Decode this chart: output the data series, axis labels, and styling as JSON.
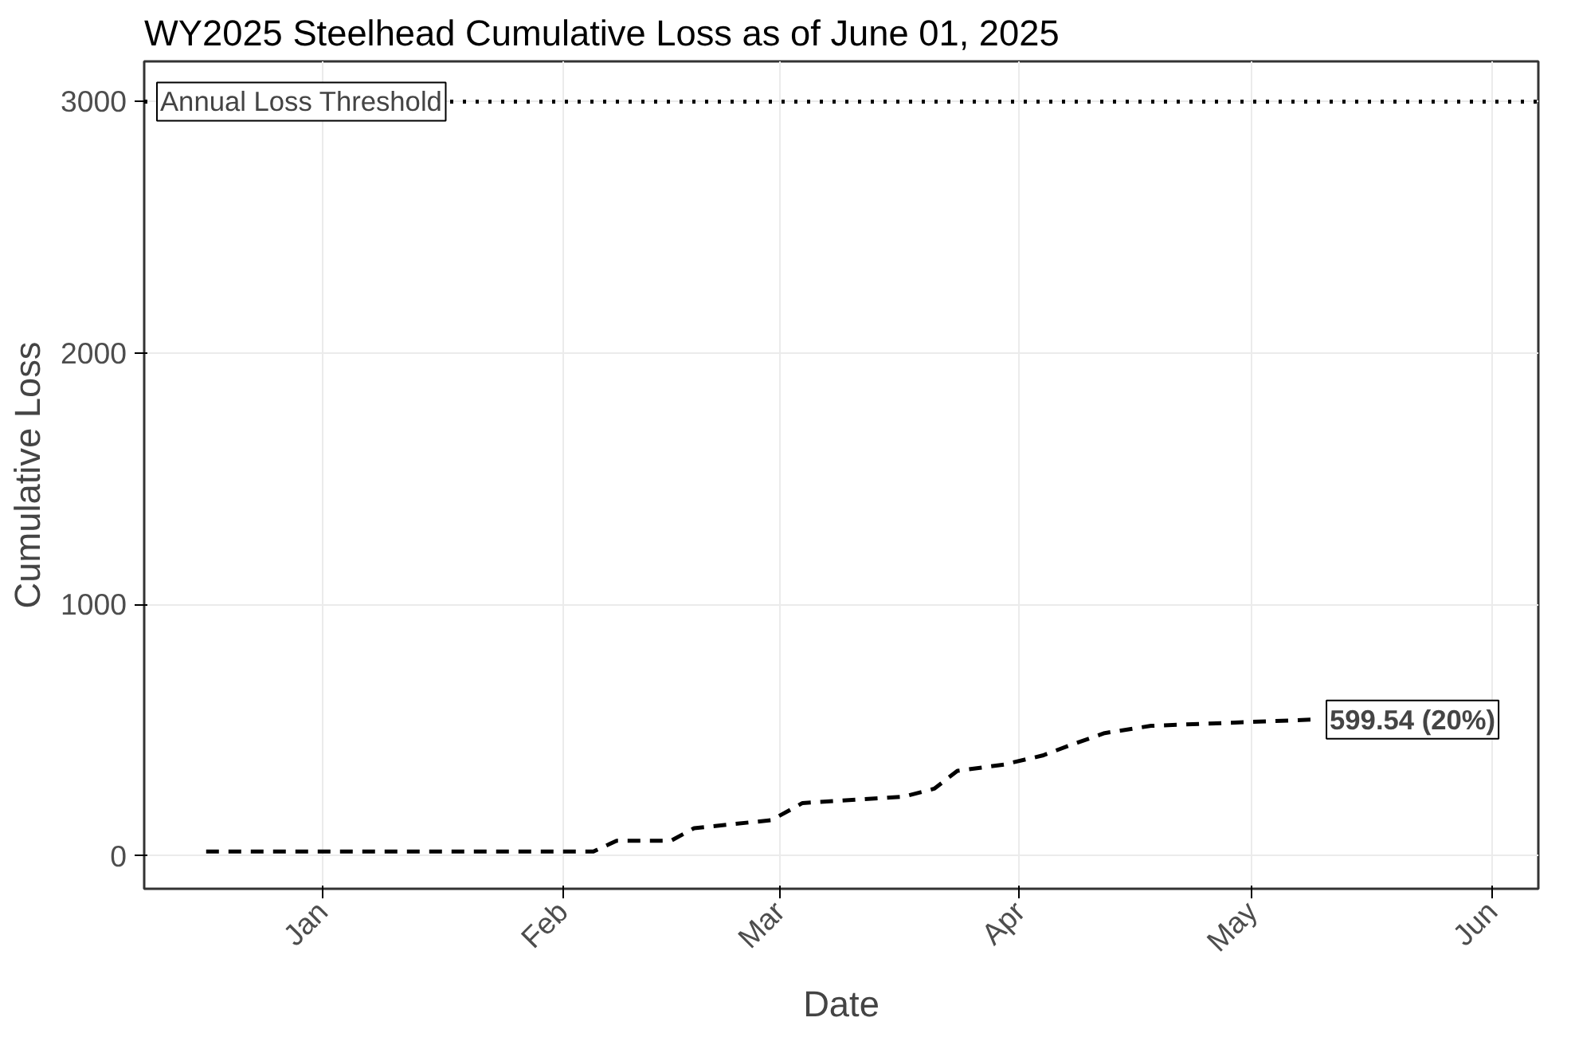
{
  "chart_data": {
    "type": "line",
    "title": "WY2025 Steelhead Cumulative Loss as of June 01, 2025",
    "xlabel": "Date",
    "ylabel": "Cumulative Loss",
    "x": [
      "2024-12-17",
      "2025-02-05",
      "2025-02-08",
      "2025-02-15",
      "2025-02-18",
      "2025-02-28",
      "2025-03-04",
      "2025-03-17",
      "2025-03-21",
      "2025-03-24",
      "2025-03-30",
      "2025-04-04",
      "2025-04-08",
      "2025-04-12",
      "2025-04-18",
      "2025-05-09"
    ],
    "series": [
      {
        "color": "#000000",
        "values": [
          18,
          18,
          61,
          61,
          111,
          143,
          211,
          236,
          268,
          339,
          364,
          400,
          446,
          489,
          518,
          543
        ]
      }
    ],
    "line_style": "dashed",
    "marker": "none",
    "annotations": [
      {
        "text": "599.54 (20%)",
        "x": "2025-05-09",
        "y": 543
      }
    ],
    "ref_lines": [
      {
        "axis": "y",
        "value": 3000,
        "label": "Annual Loss Threshold",
        "color": "#000000",
        "line_style": "dotted"
      }
    ],
    "xlim": [
      "2024-12-09",
      "2025-06-07"
    ],
    "ylim": [
      -130,
      3160
    ],
    "xticks": [
      {
        "value": "2025-01-01",
        "label": "Jan"
      },
      {
        "value": "2025-02-01",
        "label": "Feb"
      },
      {
        "value": "2025-03-01",
        "label": "Mar"
      },
      {
        "value": "2025-04-01",
        "label": "Apr"
      },
      {
        "value": "2025-05-01",
        "label": "May"
      },
      {
        "value": "2025-06-01",
        "label": "Jun"
      }
    ],
    "yticks": [
      0,
      1000,
      2000,
      3000
    ],
    "grid": true
  }
}
